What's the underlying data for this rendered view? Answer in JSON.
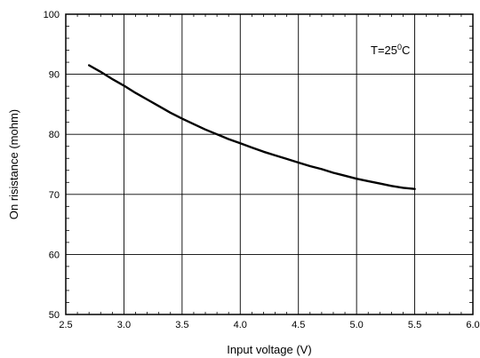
{
  "chart_data": {
    "type": "line",
    "title": "",
    "xlabel": "Input voltage (V)",
    "ylabel": "On risistance (mohm)",
    "xlim": [
      2.5,
      6.0
    ],
    "ylim": [
      50,
      100
    ],
    "x_ticks": [
      "2.5",
      "3.0",
      "3.5",
      "4.0",
      "4.5",
      "5.0",
      "5.5",
      "6.0"
    ],
    "y_ticks": [
      "50",
      "60",
      "70",
      "80",
      "90",
      "100"
    ],
    "grid": true,
    "annotation": {
      "base": "T=25",
      "superscript": "0",
      "unit": "C"
    },
    "series": [
      {
        "x": [
          2.7,
          2.8,
          2.9,
          3.0,
          3.1,
          3.2,
          3.3,
          3.4,
          3.5,
          3.6,
          3.7,
          3.8,
          3.9,
          4.0,
          4.1,
          4.2,
          4.3,
          4.4,
          4.5,
          4.6,
          4.7,
          4.8,
          4.9,
          5.0,
          5.1,
          5.2,
          5.3,
          5.4,
          5.5
        ],
        "y": [
          91.5,
          90.4,
          89.2,
          88.1,
          86.9,
          85.8,
          84.7,
          83.6,
          82.6,
          81.7,
          80.8,
          80.0,
          79.2,
          78.5,
          77.8,
          77.1,
          76.5,
          75.9,
          75.3,
          74.7,
          74.2,
          73.6,
          73.1,
          72.6,
          72.2,
          71.8,
          71.4,
          71.1,
          70.9
        ]
      }
    ]
  }
}
